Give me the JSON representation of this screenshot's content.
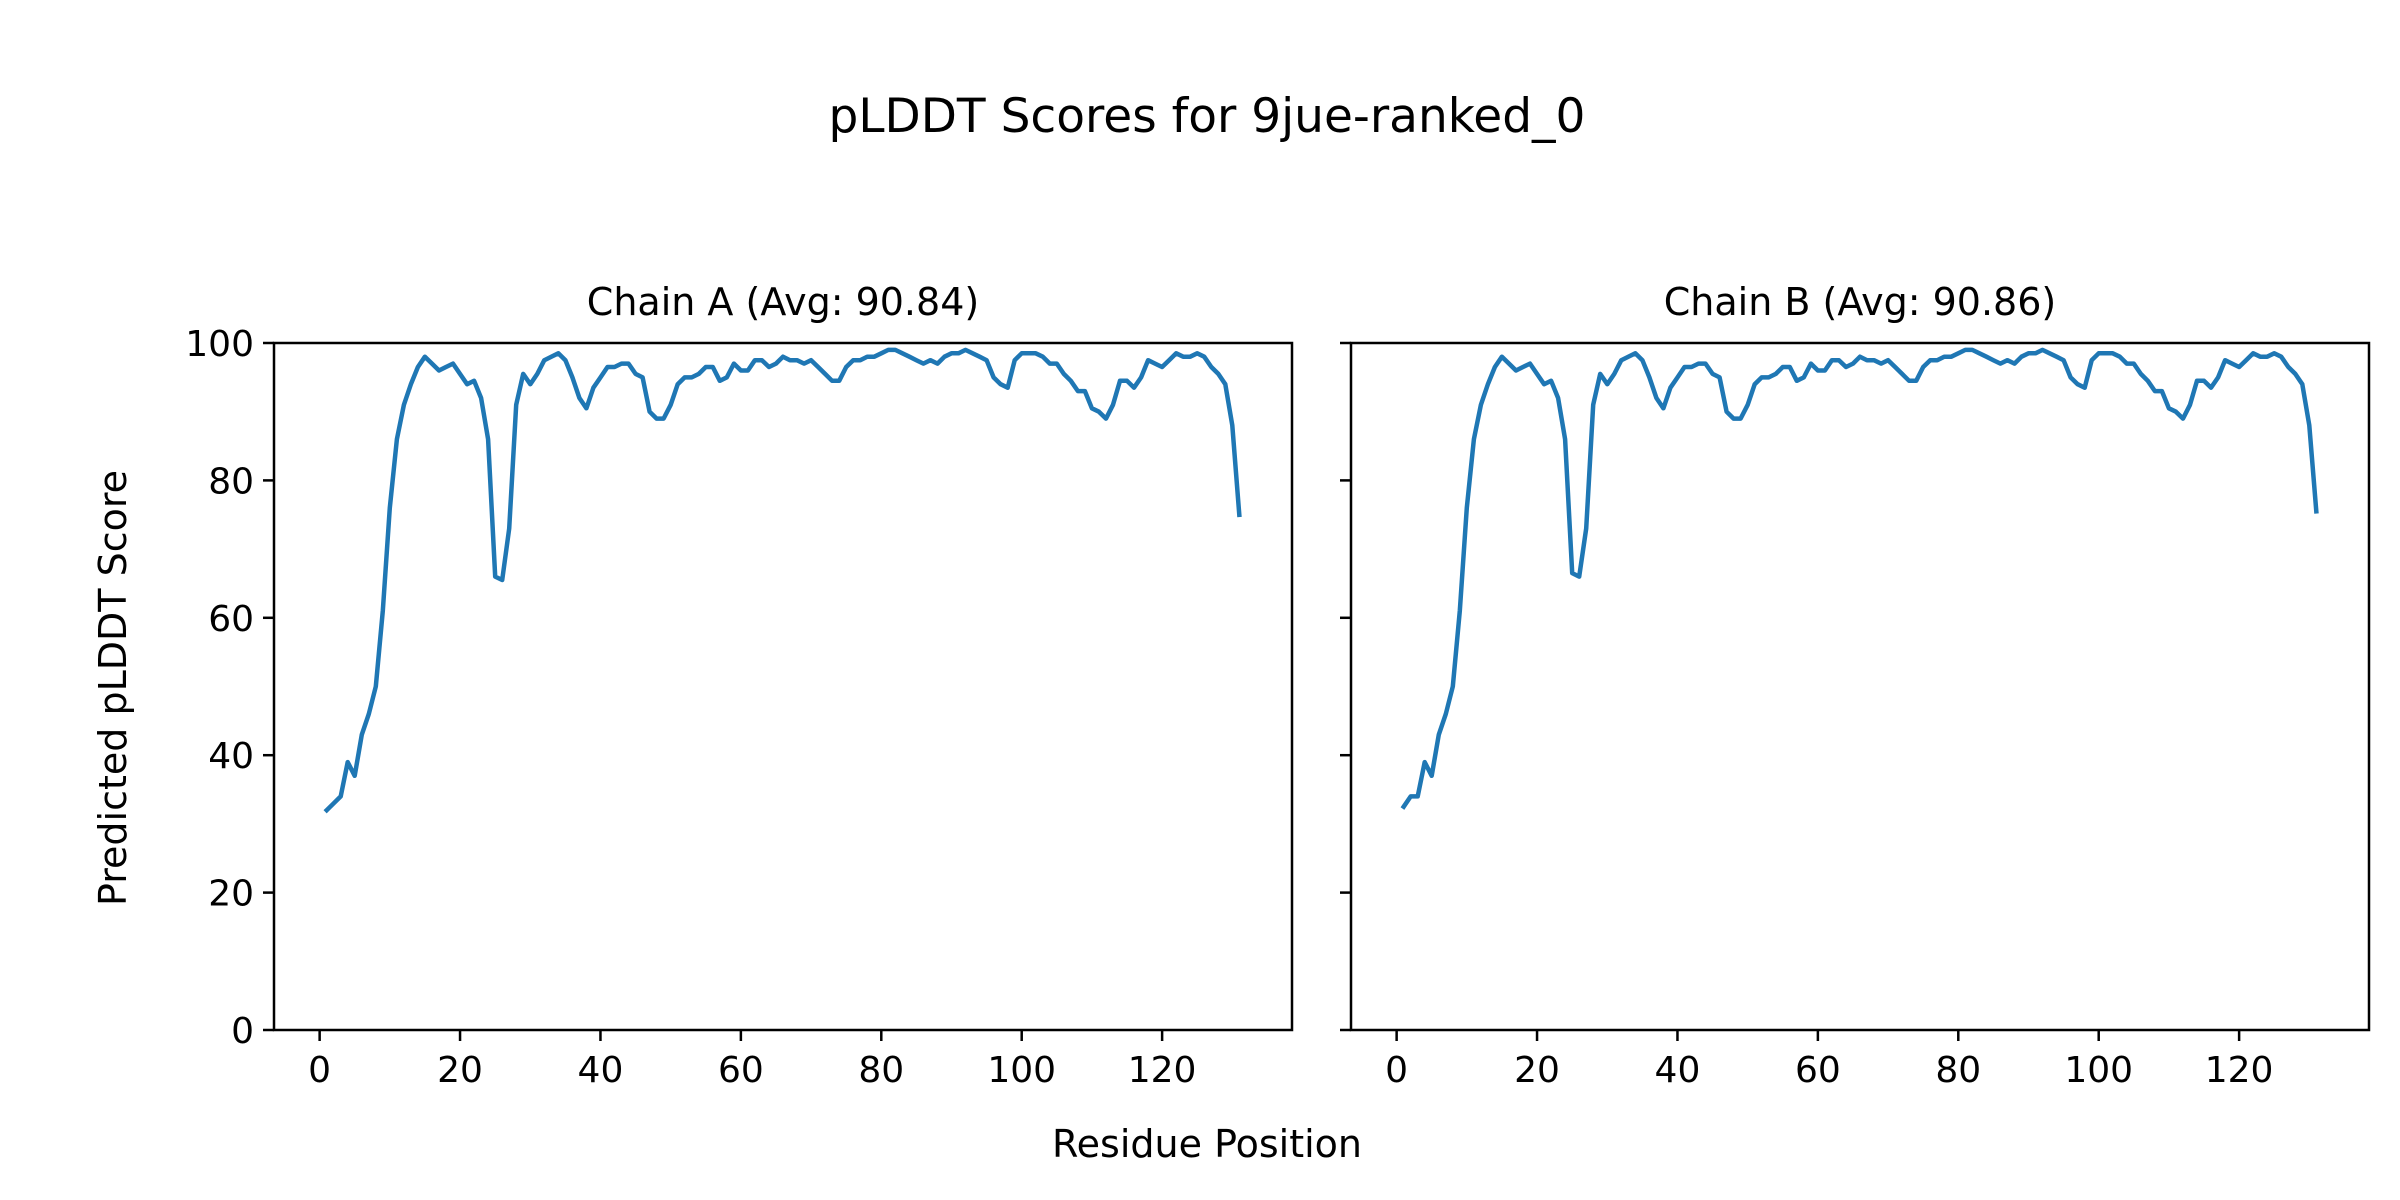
{
  "title": "pLDDT Scores for 9jue-ranked_0",
  "xlabel": "Residue Position",
  "ylabel": "Predicted pLDDT Score",
  "colors": {
    "line": "#1f77b4"
  },
  "chart_data": [
    {
      "type": "line",
      "title": "Chain A (Avg: 90.84)",
      "xlim": [
        -6.5,
        138.5
      ],
      "ylim": [
        0,
        100
      ],
      "xticks": [
        0,
        20,
        40,
        60,
        80,
        100,
        120
      ],
      "yticks": [
        0,
        20,
        40,
        60,
        80,
        100
      ],
      "x": [
        1,
        2,
        3,
        4,
        5,
        6,
        7,
        8,
        9,
        10,
        11,
        12,
        13,
        14,
        15,
        16,
        17,
        18,
        19,
        20,
        21,
        22,
        23,
        24,
        25,
        26,
        27,
        28,
        29,
        30,
        31,
        32,
        33,
        34,
        35,
        36,
        37,
        38,
        39,
        40,
        41,
        42,
        43,
        44,
        45,
        46,
        47,
        48,
        49,
        50,
        51,
        52,
        53,
        54,
        55,
        56,
        57,
        58,
        59,
        60,
        61,
        62,
        63,
        64,
        65,
        66,
        67,
        68,
        69,
        70,
        71,
        72,
        73,
        74,
        75,
        76,
        77,
        78,
        79,
        80,
        81,
        82,
        83,
        84,
        85,
        86,
        87,
        88,
        89,
        90,
        91,
        92,
        93,
        94,
        95,
        96,
        97,
        98,
        99,
        100,
        101,
        102,
        103,
        104,
        105,
        106,
        107,
        108,
        109,
        110,
        111,
        112,
        113,
        114,
        115,
        116,
        117,
        118,
        119,
        120,
        121,
        122,
        123,
        124,
        125,
        126,
        127,
        128,
        129,
        130,
        131
      ],
      "y": [
        32,
        33,
        34,
        39,
        37,
        43,
        46,
        50,
        61,
        76,
        86,
        91,
        94,
        96.5,
        98,
        97,
        96,
        96.5,
        97,
        95.5,
        94,
        94.5,
        92,
        86,
        66,
        65.5,
        73,
        91,
        95.5,
        94,
        95.5,
        97.5,
        98,
        98.5,
        97.5,
        95,
        92,
        90.5,
        93.5,
        95,
        96.5,
        96.5,
        97,
        97,
        95.5,
        95,
        90,
        89,
        89,
        91,
        94,
        95,
        95,
        95.5,
        96.5,
        96.5,
        94.5,
        95,
        97,
        96,
        96,
        97.5,
        97.5,
        96.5,
        97,
        98,
        97.5,
        97.5,
        97,
        97.5,
        96.5,
        95.5,
        94.5,
        94.5,
        96.5,
        97.5,
        97.5,
        98,
        98,
        98.5,
        99,
        99,
        98.5,
        98,
        97.5,
        97,
        97.5,
        97,
        98,
        98.5,
        98.5,
        99,
        98.5,
        98,
        97.5,
        95,
        94,
        93.5,
        97.5,
        98.5,
        98.5,
        98.5,
        98,
        97,
        97,
        95.5,
        94.5,
        93,
        93,
        90.5,
        90,
        89,
        91,
        94.5,
        94.5,
        93.5,
        95,
        97.5,
        97,
        96.5,
        97.5,
        98.5,
        98,
        98,
        98.5,
        98,
        96.5,
        95.5,
        94,
        88,
        75
      ]
    },
    {
      "type": "line",
      "title": "Chain B (Avg: 90.86)",
      "xlim": [
        -6.5,
        138.5
      ],
      "ylim": [
        0,
        100
      ],
      "xticks": [
        0,
        20,
        40,
        60,
        80,
        100,
        120
      ],
      "yticks": [
        0,
        20,
        40,
        60,
        80,
        100
      ],
      "x": [
        1,
        2,
        3,
        4,
        5,
        6,
        7,
        8,
        9,
        10,
        11,
        12,
        13,
        14,
        15,
        16,
        17,
        18,
        19,
        20,
        21,
        22,
        23,
        24,
        25,
        26,
        27,
        28,
        29,
        30,
        31,
        32,
        33,
        34,
        35,
        36,
        37,
        38,
        39,
        40,
        41,
        42,
        43,
        44,
        45,
        46,
        47,
        48,
        49,
        50,
        51,
        52,
        53,
        54,
        55,
        56,
        57,
        58,
        59,
        60,
        61,
        62,
        63,
        64,
        65,
        66,
        67,
        68,
        69,
        70,
        71,
        72,
        73,
        74,
        75,
        76,
        77,
        78,
        79,
        80,
        81,
        82,
        83,
        84,
        85,
        86,
        87,
        88,
        89,
        90,
        91,
        92,
        93,
        94,
        95,
        96,
        97,
        98,
        99,
        100,
        101,
        102,
        103,
        104,
        105,
        106,
        107,
        108,
        109,
        110,
        111,
        112,
        113,
        114,
        115,
        116,
        117,
        118,
        119,
        120,
        121,
        122,
        123,
        124,
        125,
        126,
        127,
        128,
        129,
        130,
        131
      ],
      "y": [
        32.5,
        34,
        34,
        39,
        37,
        43,
        46,
        50,
        61,
        76,
        86,
        91,
        94,
        96.5,
        98,
        97,
        96,
        96.5,
        97,
        95.5,
        94,
        94.5,
        92,
        86,
        66.5,
        66,
        73,
        91,
        95.5,
        94,
        95.5,
        97.5,
        98,
        98.5,
        97.5,
        95,
        92,
        90.5,
        93.5,
        95,
        96.5,
        96.5,
        97,
        97,
        95.5,
        95,
        90,
        89,
        89,
        91,
        94,
        95,
        95,
        95.5,
        96.5,
        96.5,
        94.5,
        95,
        97,
        96,
        96,
        97.5,
        97.5,
        96.5,
        97,
        98,
        97.5,
        97.5,
        97,
        97.5,
        96.5,
        95.5,
        94.5,
        94.5,
        96.5,
        97.5,
        97.5,
        98,
        98,
        98.5,
        99,
        99,
        98.5,
        98,
        97.5,
        97,
        97.5,
        97,
        98,
        98.5,
        98.5,
        99,
        98.5,
        98,
        97.5,
        95,
        94,
        93.5,
        97.5,
        98.5,
        98.5,
        98.5,
        98,
        97,
        97,
        95.5,
        94.5,
        93,
        93,
        90.5,
        90,
        89,
        91,
        94.5,
        94.5,
        93.5,
        95,
        97.5,
        97,
        96.5,
        97.5,
        98.5,
        98,
        98,
        98.5,
        98,
        96.5,
        95.5,
        94,
        88,
        75.5
      ]
    }
  ]
}
